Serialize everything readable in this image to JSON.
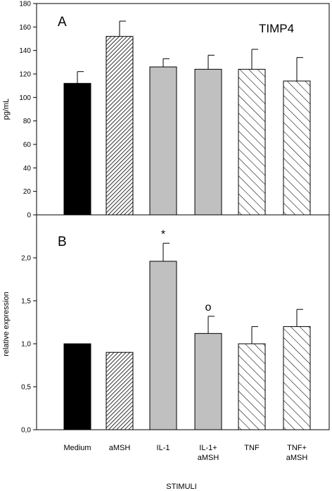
{
  "chart_data": [
    {
      "type": "bar",
      "panel": "A",
      "title": "TIMP4",
      "ylabel": "pg/mL",
      "ylim": [
        0,
        180
      ],
      "yticks": [
        0,
        20,
        40,
        60,
        80,
        100,
        120,
        140,
        160,
        180
      ],
      "ytick_labels": [
        "0",
        "20",
        "40",
        "60",
        "80",
        "100",
        "120",
        "140",
        "160",
        "180"
      ],
      "categories": [
        "Medium",
        "aMSH",
        "IL-1",
        "IL-1+ aMSH",
        "TNF",
        "TNF+ aMSH"
      ],
      "values": [
        112,
        152,
        126,
        124,
        124,
        114
      ],
      "errors": [
        10,
        13,
        7,
        12,
        17,
        20
      ],
      "annotations": [
        "",
        "",
        "",
        "",
        "",
        ""
      ],
      "fills": [
        "black",
        "dense-hatch",
        "gray",
        "gray",
        "diag-hatch",
        "diag-hatch"
      ],
      "colors": {
        "bar_dark": "#000000",
        "bar_gray": "#c0c0c0",
        "hatch": "#000000"
      }
    },
    {
      "type": "bar",
      "panel": "B",
      "title": "",
      "ylabel": "relative expression",
      "xlabel": "STIMULI",
      "ylim": [
        0,
        2.5
      ],
      "yticks": [
        0,
        0.5,
        1.0,
        1.5,
        2.0,
        2.5
      ],
      "ytick_labels": [
        "0,0",
        "0,5",
        "1,0",
        "1,5",
        "2,0",
        ""
      ],
      "categories": [
        "Medium",
        "aMSH",
        "IL-1",
        "IL-1+ aMSH",
        "TNF",
        "TNF+ aMSH"
      ],
      "category_lines": [
        [
          "Medium"
        ],
        [
          "aMSH"
        ],
        [
          "IL-1"
        ],
        [
          "IL-1+",
          "aMSH"
        ],
        [
          "TNF"
        ],
        [
          "TNF+",
          "aMSH"
        ]
      ],
      "values": [
        1.0,
        0.9,
        1.96,
        1.12,
        1.0,
        1.2
      ],
      "errors": [
        0,
        0,
        0.21,
        0.2,
        0.2,
        0.2
      ],
      "annotations": [
        "",
        "",
        "*",
        "o",
        "",
        ""
      ],
      "fills": [
        "black",
        "dense-hatch",
        "gray",
        "gray",
        "diag-hatch",
        "diag-hatch"
      ],
      "colors": {
        "bar_dark": "#000000",
        "bar_gray": "#c0c0c0",
        "hatch": "#000000"
      }
    }
  ]
}
